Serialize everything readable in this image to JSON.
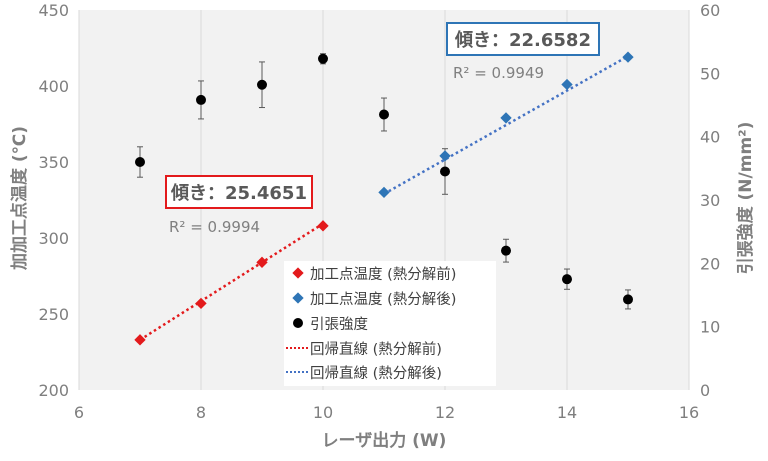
{
  "chart_data": {
    "type": "scatter",
    "xlabel": "レーザ出力 (W)",
    "ylabel_left": "加加工点温度 (℃)",
    "ylabel_right": "引張強度 (N/mm²)",
    "xlim": [
      6,
      16
    ],
    "ylim_left": [
      200,
      450
    ],
    "ylim_right": [
      0,
      60
    ],
    "x_ticks": [
      6,
      8,
      10,
      12,
      14,
      16
    ],
    "y_ticks_left": [
      200,
      250,
      300,
      350,
      400,
      450
    ],
    "y_ticks_right": [
      0,
      10,
      20,
      30,
      40,
      50,
      60
    ],
    "grid": "vertical",
    "background": "#f2f2f2",
    "legend_position": "bottom-center",
    "series": [
      {
        "name": "加工点温度 (熱分解前)",
        "axis": "left",
        "marker": "diamond",
        "color": "#e31a1c",
        "x": [
          7,
          8,
          9,
          10
        ],
        "y": [
          233,
          257,
          284,
          308
        ]
      },
      {
        "name": "加工点温度 (熱分解後)",
        "axis": "left",
        "marker": "diamond",
        "color": "#2e75b6",
        "x": [
          11,
          12,
          13,
          14,
          15
        ],
        "y": [
          330,
          354,
          379,
          401,
          419
        ]
      },
      {
        "name": "引張強度",
        "axis": "right",
        "marker": "circle",
        "color": "#000000",
        "x": [
          7,
          8,
          9,
          10,
          11,
          12,
          13,
          14,
          15
        ],
        "y": [
          36.0,
          45.8,
          48.2,
          52.3,
          43.5,
          34.5,
          22.0,
          17.5,
          14.3
        ],
        "err": [
          2.4,
          3.0,
          3.6,
          0.8,
          2.6,
          3.6,
          1.8,
          1.6,
          1.5
        ]
      },
      {
        "name": "回帰直線 (熱分解前)",
        "axis": "left",
        "line": "dotted",
        "color": "#e31a1c",
        "x": [
          7,
          10
        ],
        "y": [
          233,
          309.4
        ]
      },
      {
        "name": "回帰直線 (熱分解後)",
        "axis": "left",
        "line": "dotted",
        "color": "#4472c4",
        "x": [
          11,
          15
        ],
        "y": [
          329,
          419.6
        ]
      }
    ],
    "annotations": [
      {
        "slope_text": "傾き：25.4651",
        "r2_text": "R² = 0.9994",
        "border_color": "#e31a1c"
      },
      {
        "slope_text": "傾き：22.6582",
        "r2_text": "R² = 0.9949",
        "border_color": "#2e75b6"
      }
    ]
  }
}
